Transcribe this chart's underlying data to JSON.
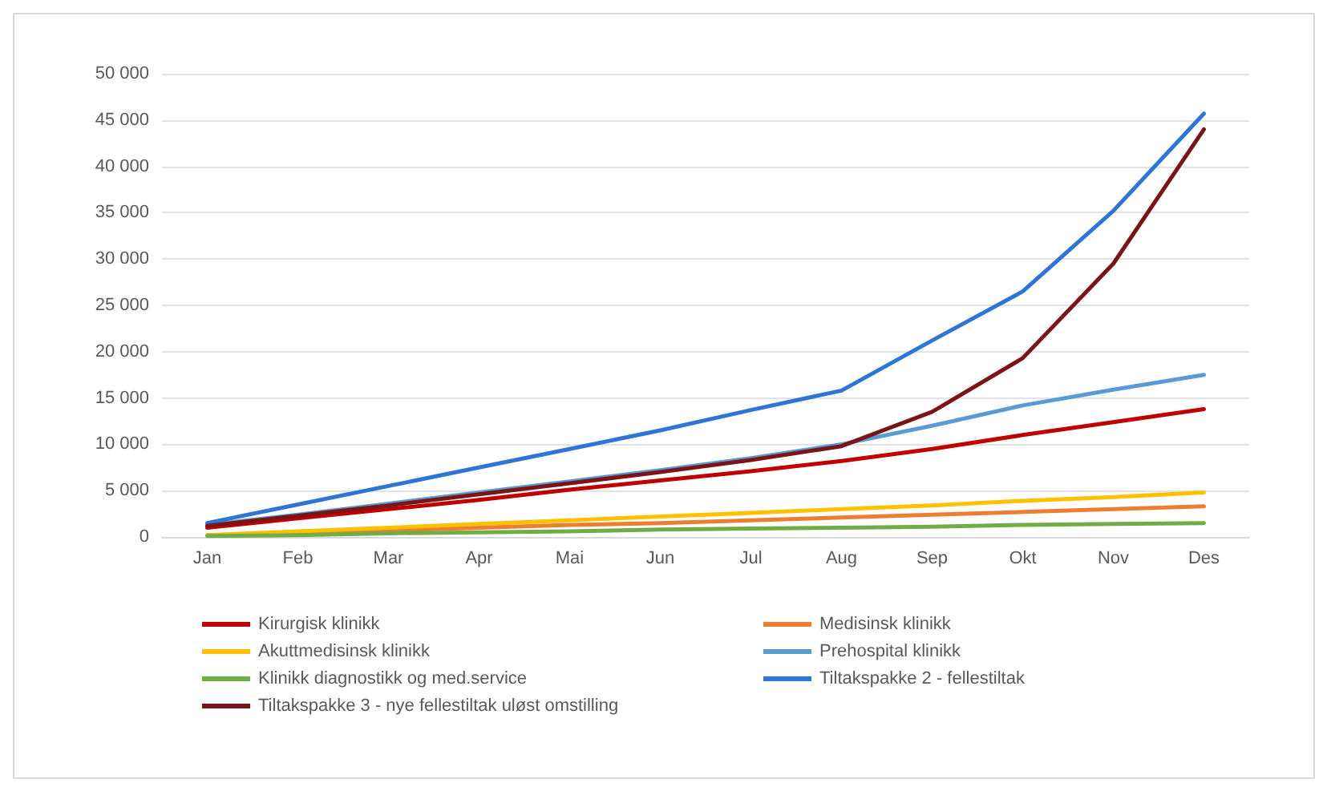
{
  "chart_data": {
    "type": "line",
    "categories": [
      "Jan",
      "Feb",
      "Mar",
      "Apr",
      "Mai",
      "Jun",
      "Jul",
      "Aug",
      "Sep",
      "Okt",
      "Nov",
      "Des"
    ],
    "series": [
      {
        "name": "Kirurgisk klinikk",
        "color": "#c00000",
        "values": [
          1000,
          2000,
          3000,
          4000,
          5100,
          6100,
          7100,
          8200,
          9500,
          11000,
          12400,
          13800
        ]
      },
      {
        "name": "Medisinsk klinikk",
        "color": "#ed7d31",
        "values": [
          200,
          400,
          700,
          1000,
          1300,
          1500,
          1800,
          2100,
          2400,
          2700,
          3000,
          3300
        ]
      },
      {
        "name": "Akuttmedisinsk klinikk",
        "color": "#ffc000",
        "values": [
          200,
          600,
          1000,
          1400,
          1800,
          2200,
          2600,
          3000,
          3400,
          3900,
          4300,
          4800
        ]
      },
      {
        "name": "Prehospital klinikk",
        "color": "#5b9bd5",
        "values": [
          1300,
          2400,
          3600,
          4800,
          6000,
          7200,
          8500,
          10000,
          12000,
          14200,
          15900,
          17500
        ]
      },
      {
        "name": "Klinikk diagnostikk og med.service",
        "color": "#70ad47",
        "values": [
          100,
          200,
          400,
          500,
          600,
          800,
          900,
          1000,
          1100,
          1300,
          1400,
          1500
        ]
      },
      {
        "name": "Tiltakspakke 2 - fellestiltak",
        "color": "#2e75d6",
        "values": [
          1500,
          3500,
          5500,
          7500,
          9500,
          11500,
          13700,
          15800,
          21200,
          26500,
          35200,
          45700
        ]
      },
      {
        "name": "Tiltakspakke 3 - nye fellestiltak uløst omstilling",
        "color": "#7b1416",
        "values": [
          1200,
          2300,
          3400,
          4600,
          5800,
          7000,
          8300,
          9800,
          13500,
          19300,
          29500,
          44000
        ]
      }
    ],
    "ylim": [
      0,
      50000
    ],
    "yticks": [
      0,
      {
        "value": 5000,
        "label": "5 000"
      },
      {
        "value": 10000,
        "label": "10 000"
      },
      {
        "value": 15000,
        "label": "15 000"
      },
      {
        "value": 20000,
        "label": "20 000"
      },
      {
        "value": 25000,
        "label": "25 000"
      },
      {
        "value": 30000,
        "label": "30 000"
      },
      {
        "value": 35000,
        "label": "35 000"
      },
      {
        "value": 40000,
        "label": "40 000"
      },
      {
        "value": 45000,
        "label": "45 000"
      },
      {
        "value": 50000,
        "label": "50 000"
      }
    ],
    "grid": "y",
    "legend": "bottom",
    "marker": "none",
    "line_style": "solid"
  }
}
